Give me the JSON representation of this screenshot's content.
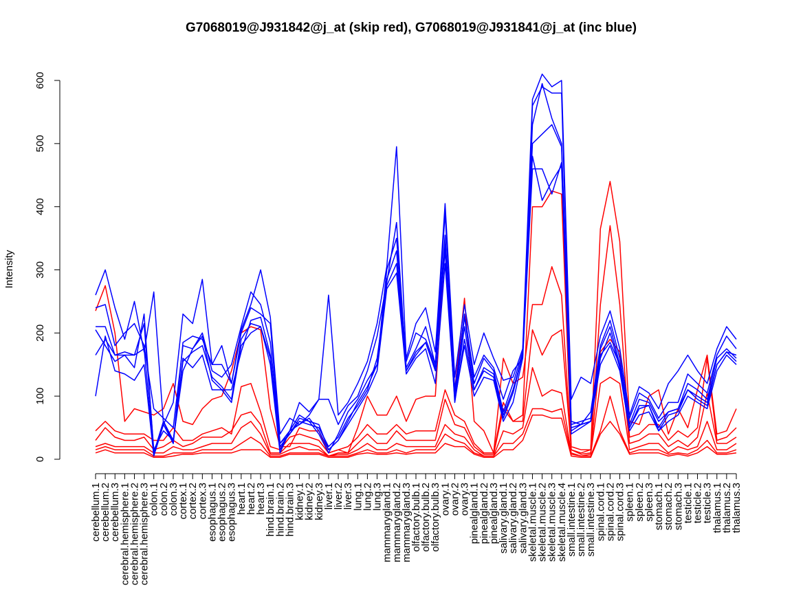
{
  "chart_data": {
    "type": "line",
    "title": "G7068019@J931842@j_at (skip red), G7068019@J931841@j_at (inc blue)",
    "xlabel": "",
    "ylabel": "Intensity",
    "ylim": [
      0,
      600
    ],
    "yticks": [
      0,
      100,
      200,
      300,
      400,
      500,
      600
    ],
    "grid": false,
    "legend": "none",
    "colors": {
      "skip": "#ff0000",
      "inc": "#0000ff"
    },
    "categories": [
      "cerebellum.1",
      "cerebellum.2",
      "cerebellum.3",
      "cerebral.hemisphere.1",
      "cerebral.hemisphere.2",
      "cerebral.hemisphere.3",
      "colon.1",
      "colon.2",
      "colon.3",
      "cortex.1",
      "cortex.2",
      "cortex.3",
      "esophagus.1",
      "esophagus.2",
      "esophagus.3",
      "heart.1",
      "heart.2",
      "heart.3",
      "hind.brain.1",
      "hind.brain.2",
      "hind.brain.3",
      "kidney.1",
      "kidney.2",
      "kidney.3",
      "liver.1",
      "liver.2",
      "liver.3",
      "lung.1",
      "lung.2",
      "lung.3",
      "mammarygland.1",
      "mammarygland.2",
      "mammarygland.3",
      "olfactory.bulb.1",
      "olfactory.bulb.2",
      "olfactory.bulb.3",
      "ovary.1",
      "ovary.2",
      "ovary.3",
      "pinealgland.1",
      "pinealgland.2",
      "pinealgland.3",
      "salivary.gland.1",
      "salivary.gland.2",
      "salivary.gland.3",
      "skeletal.muscle.1",
      "skeletal.muscle.2",
      "skeletal.muscle.3",
      "skeletal.muscle.4",
      "small.intestine.1",
      "small.intestine.2",
      "small.intestine.3",
      "spinal.cord.1",
      "spinal.cord.2",
      "spinal.cord.3",
      "spleen.1",
      "spleen.2",
      "spleen.3",
      "stomach.1",
      "stomach.2",
      "stomach.3",
      "testicle.1",
      "testicle.2",
      "testicle.3",
      "thalamus.1",
      "thalamus.2",
      "thalamus.3"
    ],
    "series": [
      {
        "group": "inc",
        "values": [
          260,
          300,
          240,
          190,
          250,
          170,
          265,
          55,
          90,
          230,
          215,
          285,
          150,
          180,
          120,
          205,
          245,
          300,
          225,
          40,
          65,
          55,
          70,
          95,
          260,
          70,
          90,
          120,
          155,
          215,
          305,
          495,
          160,
          215,
          240,
          170,
          405,
          130,
          245,
          150,
          200,
          160,
          125,
          130,
          175,
          570,
          610,
          590,
          600,
          95,
          130,
          120,
          195,
          235,
          175,
          70,
          115,
          105,
          80,
          120,
          140,
          165,
          140,
          120,
          175,
          210,
          190
        ]
      },
      {
        "group": "inc",
        "values": [
          240,
          245,
          180,
          200,
          215,
          180,
          80,
          65,
          50,
          180,
          175,
          200,
          140,
          130,
          150,
          210,
          265,
          245,
          185,
          25,
          45,
          90,
          75,
          95,
          95,
          55,
          85,
          100,
          140,
          195,
          280,
          375,
          145,
          175,
          210,
          150,
          390,
          110,
          230,
          130,
          165,
          145,
          95,
          140,
          160,
          560,
          590,
          580,
          580,
          60,
          55,
          75,
          180,
          220,
          160,
          65,
          105,
          95,
          65,
          90,
          90,
          135,
          120,
          105,
          165,
          195,
          175
        ]
      },
      {
        "group": "inc",
        "values": [
          205,
          180,
          155,
          165,
          145,
          230,
          10,
          60,
          25,
          185,
          195,
          190,
          150,
          150,
          120,
          200,
          240,
          230,
          215,
          25,
          40,
          65,
          60,
          40,
          10,
          40,
          75,
          95,
          125,
          150,
          300,
          350,
          155,
          200,
          190,
          150,
          355,
          100,
          225,
          120,
          160,
          140,
          75,
          120,
          170,
          530,
          595,
          540,
          500,
          55,
          60,
          65,
          175,
          210,
          150,
          55,
          95,
          90,
          60,
          75,
          80,
          120,
          110,
          95,
          160,
          175,
          160
        ]
      },
      {
        "group": "inc",
        "values": [
          165,
          190,
          165,
          170,
          165,
          215,
          15,
          45,
          30,
          140,
          175,
          195,
          125,
          110,
          110,
          170,
          220,
          225,
          165,
          20,
          40,
          60,
          55,
          50,
          20,
          35,
          65,
          85,
          110,
          160,
          275,
          310,
          140,
          165,
          185,
          145,
          330,
          90,
          190,
          110,
          140,
          130,
          65,
          105,
          165,
          500,
          515,
          530,
          495,
          50,
          55,
          60,
          165,
          185,
          150,
          50,
          80,
          85,
          45,
          70,
          75,
          110,
          95,
          85,
          150,
          170,
          155
        ]
      },
      {
        "group": "inc",
        "values": [
          100,
          195,
          140,
          135,
          125,
          150,
          5,
          55,
          25,
          160,
          145,
          165,
          110,
          110,
          90,
          180,
          200,
          210,
          150,
          10,
          45,
          55,
          65,
          45,
          15,
          30,
          55,
          80,
          105,
          140,
          270,
          295,
          135,
          160,
          175,
          120,
          310,
          95,
          180,
          100,
          130,
          125,
          60,
          90,
          160,
          460,
          460,
          420,
          470,
          40,
          50,
          60,
          150,
          180,
          140,
          45,
          70,
          75,
          45,
          60,
          70,
          100,
          90,
          80,
          140,
          165,
          150
        ]
      },
      {
        "group": "inc",
        "values": [
          210,
          210,
          165,
          165,
          165,
          175,
          10,
          60,
          30,
          155,
          170,
          180,
          130,
          115,
          95,
          190,
          215,
          210,
          160,
          15,
          45,
          70,
          60,
          55,
          15,
          30,
          60,
          90,
          115,
          150,
          285,
          330,
          140,
          170,
          185,
          140,
          340,
          95,
          210,
          110,
          145,
          135,
          70,
          110,
          165,
          480,
          410,
          440,
          465,
          45,
          55,
          60,
          160,
          200,
          145,
          50,
          85,
          85,
          50,
          75,
          80,
          110,
          100,
          90,
          150,
          170,
          165
        ]
      },
      {
        "group": "skip",
        "values": [
          235,
          275,
          200,
          60,
          80,
          75,
          70,
          80,
          120,
          60,
          55,
          80,
          95,
          100,
          140,
          200,
          210,
          205,
          80,
          20,
          20,
          50,
          45,
          45,
          10,
          15,
          10,
          50,
          100,
          70,
          70,
          100,
          60,
          95,
          100,
          100,
          345,
          110,
          255,
          60,
          45,
          10,
          90,
          60,
          70,
          400,
          400,
          425,
          420,
          20,
          15,
          15,
          365,
          440,
          345,
          60,
          55,
          100,
          110,
          40,
          80,
          50,
          110,
          165,
          40,
          45,
          80
        ]
      },
      {
        "group": "skip",
        "values": [
          45,
          60,
          45,
          40,
          40,
          40,
          30,
          30,
          50,
          30,
          30,
          40,
          45,
          50,
          40,
          115,
          120,
          75,
          20,
          15,
          35,
          40,
          35,
          30,
          10,
          15,
          20,
          35,
          55,
          40,
          40,
          55,
          40,
          45,
          45,
          45,
          110,
          70,
          60,
          25,
          10,
          10,
          160,
          120,
          130,
          245,
          245,
          305,
          260,
          15,
          10,
          15,
          245,
          370,
          245,
          35,
          40,
          55,
          55,
          30,
          45,
          35,
          50,
          160,
          30,
          35,
          50
        ]
      },
      {
        "group": "skip",
        "values": [
          30,
          50,
          35,
          30,
          30,
          35,
          15,
          20,
          30,
          20,
          25,
          35,
          35,
          35,
          45,
          70,
          75,
          55,
          10,
          10,
          25,
          25,
          25,
          20,
          5,
          10,
          10,
          25,
          40,
          25,
          25,
          45,
          30,
          30,
          30,
          30,
          95,
          55,
          50,
          20,
          8,
          8,
          80,
          60,
          60,
          205,
          165,
          195,
          205,
          15,
          8,
          10,
          170,
          190,
          170,
          25,
          30,
          40,
          40,
          20,
          30,
          20,
          35,
          105,
          25,
          25,
          35
        ]
      },
      {
        "group": "skip",
        "values": [
          20,
          25,
          20,
          20,
          20,
          20,
          10,
          10,
          20,
          15,
          15,
          20,
          25,
          25,
          25,
          50,
          60,
          40,
          8,
          8,
          15,
          20,
          15,
          15,
          5,
          8,
          8,
          15,
          25,
          15,
          15,
          25,
          20,
          20,
          20,
          20,
          55,
          40,
          35,
          15,
          5,
          5,
          45,
          40,
          50,
          145,
          100,
          110,
          105,
          10,
          5,
          8,
          120,
          130,
          120,
          15,
          20,
          25,
          25,
          10,
          20,
          15,
          20,
          60,
          15,
          15,
          25
        ]
      },
      {
        "group": "skip",
        "values": [
          15,
          20,
          15,
          15,
          15,
          15,
          5,
          5,
          10,
          10,
          10,
          15,
          15,
          15,
          15,
          25,
          35,
          25,
          5,
          5,
          10,
          10,
          10,
          10,
          5,
          5,
          5,
          10,
          15,
          10,
          10,
          15,
          10,
          15,
          15,
          15,
          40,
          30,
          25,
          10,
          5,
          5,
          25,
          25,
          40,
          80,
          80,
          75,
          80,
          8,
          5,
          5,
          45,
          100,
          45,
          10,
          15,
          15,
          15,
          8,
          10,
          8,
          15,
          30,
          10,
          10,
          15
        ]
      },
      {
        "group": "skip",
        "values": [
          10,
          15,
          10,
          10,
          10,
          10,
          3,
          3,
          5,
          8,
          8,
          10,
          10,
          10,
          10,
          15,
          15,
          15,
          3,
          3,
          8,
          8,
          8,
          8,
          3,
          3,
          3,
          8,
          10,
          8,
          8,
          10,
          8,
          10,
          10,
          10,
          25,
          20,
          20,
          8,
          3,
          3,
          15,
          15,
          30,
          70,
          70,
          65,
          65,
          5,
          3,
          3,
          40,
          60,
          40,
          8,
          10,
          10,
          10,
          5,
          8,
          5,
          10,
          20,
          8,
          8,
          10
        ]
      }
    ]
  }
}
